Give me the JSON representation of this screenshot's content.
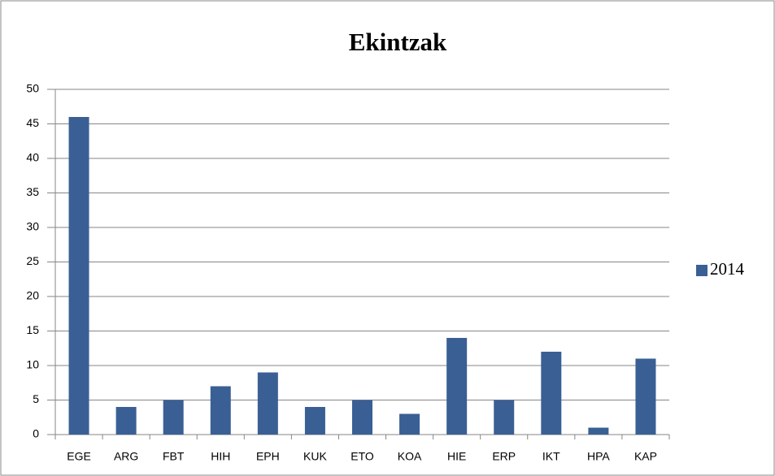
{
  "chart_data": {
    "type": "bar",
    "title": "Ekintzak",
    "categories": [
      "EGE",
      "ARG",
      "FBT",
      "HIH",
      "EPH",
      "KUK",
      "ETO",
      "KOA",
      "HIE",
      "ERP",
      "IKT",
      "HPA",
      "KAP"
    ],
    "series": [
      {
        "name": "2014",
        "color": "#3a5f94",
        "values": [
          46,
          4,
          5,
          7,
          9,
          4,
          5,
          3,
          14,
          5,
          12,
          1,
          11
        ]
      }
    ],
    "ylim": [
      0,
      50
    ],
    "yticks": [
      0,
      5,
      10,
      15,
      20,
      25,
      30,
      35,
      40,
      45,
      50
    ],
    "grid": true,
    "legend": "right"
  }
}
